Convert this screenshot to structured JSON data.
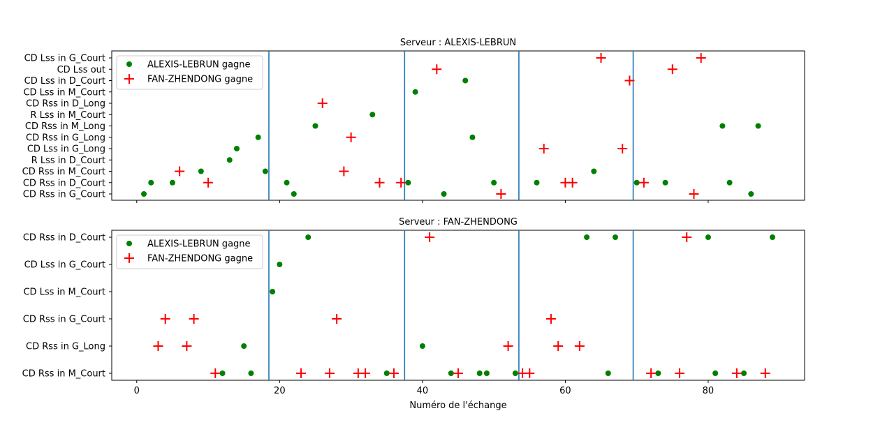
{
  "chart_data": [
    {
      "type": "scatter",
      "title": "Serveur : ALEXIS-LEBRUN",
      "xlabel": "",
      "ylabel": "",
      "xlim": [
        -3.5,
        93.5
      ],
      "xticks": [
        0,
        20,
        40,
        60,
        80
      ],
      "show_xtick_labels": false,
      "categories": [
        "CD Rss in G_Court",
        "CD Rss in D_Court",
        "CD Rss in M_Court",
        "R Lss in D_Court",
        "CD Lss in G_Long",
        "CD Rss in G_Long",
        "CD Rss in M_Long",
        "R Lss in M_Court",
        "CD Rss in D_Long",
        "CD Lss in M_Court",
        "CD Lss in D_Court",
        "CD Lss out",
        "CD Lss in G_Court"
      ],
      "vlines": [
        18.5,
        37.5,
        53.5,
        69.5
      ],
      "vline_color": "#1f77b4",
      "legend_position": "upper-left",
      "series": [
        {
          "name": "ALEXIS-LEBRUN gagne",
          "marker": "circle",
          "color": "#008000",
          "points": [
            {
              "x": 1,
              "y": "CD Rss in G_Court"
            },
            {
              "x": 2,
              "y": "CD Rss in D_Court"
            },
            {
              "x": 5,
              "y": "CD Rss in D_Court"
            },
            {
              "x": 9,
              "y": "CD Rss in M_Court"
            },
            {
              "x": 13,
              "y": "R Lss in D_Court"
            },
            {
              "x": 14,
              "y": "CD Lss in G_Long"
            },
            {
              "x": 17,
              "y": "CD Rss in G_Long"
            },
            {
              "x": 18,
              "y": "CD Rss in M_Court"
            },
            {
              "x": 21,
              "y": "CD Rss in D_Court"
            },
            {
              "x": 22,
              "y": "CD Rss in G_Court"
            },
            {
              "x": 25,
              "y": "CD Rss in M_Long"
            },
            {
              "x": 33,
              "y": "R Lss in M_Court"
            },
            {
              "x": 38,
              "y": "CD Rss in D_Court"
            },
            {
              "x": 39,
              "y": "CD Lss in M_Court"
            },
            {
              "x": 43,
              "y": "CD Rss in G_Court"
            },
            {
              "x": 46,
              "y": "CD Lss in D_Court"
            },
            {
              "x": 47,
              "y": "CD Rss in G_Long"
            },
            {
              "x": 50,
              "y": "CD Rss in D_Court"
            },
            {
              "x": 56,
              "y": "CD Rss in D_Court"
            },
            {
              "x": 64,
              "y": "CD Rss in M_Court"
            },
            {
              "x": 70,
              "y": "CD Rss in D_Court"
            },
            {
              "x": 74,
              "y": "CD Rss in D_Court"
            },
            {
              "x": 82,
              "y": "CD Rss in M_Long"
            },
            {
              "x": 83,
              "y": "CD Rss in D_Court"
            },
            {
              "x": 86,
              "y": "CD Rss in G_Court"
            },
            {
              "x": 87,
              "y": "CD Rss in M_Long"
            }
          ]
        },
        {
          "name": "FAN-ZHENDONG gagne",
          "marker": "plus",
          "color": "#ff0000",
          "points": [
            {
              "x": 6,
              "y": "CD Rss in M_Court"
            },
            {
              "x": 10,
              "y": "CD Rss in D_Court"
            },
            {
              "x": 26,
              "y": "CD Rss in D_Long"
            },
            {
              "x": 29,
              "y": "CD Rss in M_Court"
            },
            {
              "x": 30,
              "y": "CD Rss in G_Long"
            },
            {
              "x": 34,
              "y": "CD Rss in D_Court"
            },
            {
              "x": 37,
              "y": "CD Rss in D_Court"
            },
            {
              "x": 42,
              "y": "CD Lss out"
            },
            {
              "x": 51,
              "y": "CD Rss in G_Court"
            },
            {
              "x": 57,
              "y": "CD Lss in G_Long"
            },
            {
              "x": 60,
              "y": "CD Rss in D_Court"
            },
            {
              "x": 61,
              "y": "CD Rss in D_Court"
            },
            {
              "x": 65,
              "y": "CD Lss in G_Court"
            },
            {
              "x": 68,
              "y": "CD Lss in G_Long"
            },
            {
              "x": 69,
              "y": "CD Lss in D_Court"
            },
            {
              "x": 71,
              "y": "CD Rss in D_Court"
            },
            {
              "x": 75,
              "y": "CD Lss out"
            },
            {
              "x": 78,
              "y": "CD Rss in G_Court"
            },
            {
              "x": 79,
              "y": "CD Lss in G_Court"
            }
          ]
        }
      ]
    },
    {
      "type": "scatter",
      "title": "Serveur : FAN-ZHENDONG",
      "xlabel": "Numéro de l'échange",
      "ylabel": "",
      "xlim": [
        -3.5,
        93.5
      ],
      "xticks": [
        0,
        20,
        40,
        60,
        80
      ],
      "show_xtick_labels": true,
      "categories": [
        "CD Rss in M_Court",
        "CD Rss in G_Long",
        "CD Rss in G_Court",
        "CD Lss in M_Court",
        "CD Lss in G_Court",
        "CD Rss in D_Court"
      ],
      "vlines": [
        18.5,
        37.5,
        53.5,
        69.5
      ],
      "vline_color": "#1f77b4",
      "legend_position": "upper-left",
      "series": [
        {
          "name": "ALEXIS-LEBRUN gagne",
          "marker": "circle",
          "color": "#008000",
          "points": [
            {
              "x": 12,
              "y": "CD Rss in M_Court"
            },
            {
              "x": 15,
              "y": "CD Rss in G_Long"
            },
            {
              "x": 16,
              "y": "CD Rss in M_Court"
            },
            {
              "x": 19,
              "y": "CD Lss in M_Court"
            },
            {
              "x": 20,
              "y": "CD Lss in G_Court"
            },
            {
              "x": 24,
              "y": "CD Rss in D_Court"
            },
            {
              "x": 35,
              "y": "CD Rss in M_Court"
            },
            {
              "x": 40,
              "y": "CD Rss in G_Long"
            },
            {
              "x": 44,
              "y": "CD Rss in M_Court"
            },
            {
              "x": 48,
              "y": "CD Rss in M_Court"
            },
            {
              "x": 49,
              "y": "CD Rss in M_Court"
            },
            {
              "x": 53,
              "y": "CD Rss in M_Court"
            },
            {
              "x": 63,
              "y": "CD Rss in D_Court"
            },
            {
              "x": 66,
              "y": "CD Rss in M_Court"
            },
            {
              "x": 67,
              "y": "CD Rss in D_Court"
            },
            {
              "x": 73,
              "y": "CD Rss in M_Court"
            },
            {
              "x": 80,
              "y": "CD Rss in D_Court"
            },
            {
              "x": 81,
              "y": "CD Rss in M_Court"
            },
            {
              "x": 85,
              "y": "CD Rss in M_Court"
            },
            {
              "x": 89,
              "y": "CD Rss in D_Court"
            }
          ]
        },
        {
          "name": "FAN-ZHENDONG gagne",
          "marker": "plus",
          "color": "#ff0000",
          "points": [
            {
              "x": 3,
              "y": "CD Rss in G_Long"
            },
            {
              "x": 4,
              "y": "CD Rss in G_Court"
            },
            {
              "x": 7,
              "y": "CD Rss in G_Long"
            },
            {
              "x": 8,
              "y": "CD Rss in G_Court"
            },
            {
              "x": 11,
              "y": "CD Rss in M_Court"
            },
            {
              "x": 23,
              "y": "CD Rss in M_Court"
            },
            {
              "x": 27,
              "y": "CD Rss in M_Court"
            },
            {
              "x": 28,
              "y": "CD Rss in G_Court"
            },
            {
              "x": 31,
              "y": "CD Rss in M_Court"
            },
            {
              "x": 32,
              "y": "CD Rss in M_Court"
            },
            {
              "x": 36,
              "y": "CD Rss in M_Court"
            },
            {
              "x": 41,
              "y": "CD Rss in D_Court"
            },
            {
              "x": 45,
              "y": "CD Rss in M_Court"
            },
            {
              "x": 52,
              "y": "CD Rss in G_Long"
            },
            {
              "x": 54,
              "y": "CD Rss in M_Court"
            },
            {
              "x": 55,
              "y": "CD Rss in M_Court"
            },
            {
              "x": 58,
              "y": "CD Rss in G_Court"
            },
            {
              "x": 59,
              "y": "CD Rss in G_Long"
            },
            {
              "x": 62,
              "y": "CD Rss in G_Long"
            },
            {
              "x": 72,
              "y": "CD Rss in M_Court"
            },
            {
              "x": 76,
              "y": "CD Rss in M_Court"
            },
            {
              "x": 77,
              "y": "CD Rss in D_Court"
            },
            {
              "x": 84,
              "y": "CD Rss in M_Court"
            },
            {
              "x": 88,
              "y": "CD Rss in M_Court"
            }
          ]
        }
      ]
    }
  ]
}
